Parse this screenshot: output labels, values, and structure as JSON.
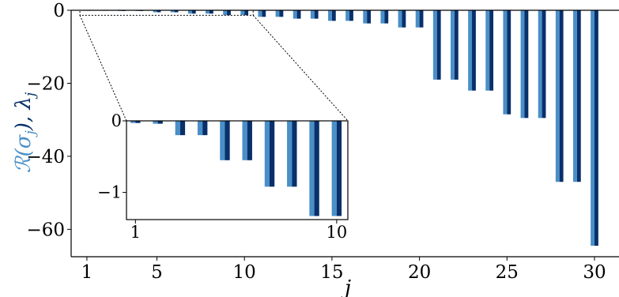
{
  "chart_data": {
    "type": "bar",
    "title": "",
    "xlabel": "j",
    "ylabel_parts": [
      "ℛ(σ",
      "j",
      "), λ",
      "j"
    ],
    "colors": {
      "real_sigma": "#4a8fc7",
      "lambda": "#08306b"
    },
    "x": [
      1,
      2,
      3,
      4,
      5,
      6,
      7,
      8,
      9,
      10,
      11,
      12,
      13,
      14,
      15,
      16,
      17,
      18,
      19,
      20,
      21,
      22,
      23,
      24,
      25,
      26,
      27,
      28,
      29,
      30
    ],
    "series": [
      {
        "values": [
          -0.03,
          -0.04,
          -0.2,
          -0.2,
          -0.55,
          -0.55,
          -0.92,
          -0.92,
          -1.33,
          -1.33,
          -1.8,
          -1.8,
          -2.3,
          -2.3,
          -2.9,
          -2.9,
          -3.6,
          -3.6,
          -4.7,
          -4.7,
          -19.0,
          -19.0,
          -22.0,
          -22.0,
          -28.5,
          -29.5,
          -29.5,
          -47.0,
          -47.0,
          -64.5
        ]
      },
      {
        "values": [
          -0.03,
          -0.04,
          -0.2,
          -0.2,
          -0.55,
          -0.55,
          -0.92,
          -0.92,
          -1.33,
          -1.33,
          -1.8,
          -1.8,
          -2.3,
          -2.3,
          -2.9,
          -2.9,
          -3.6,
          -3.6,
          -4.7,
          -4.7,
          -19.0,
          -19.0,
          -22.0,
          -22.0,
          -28.5,
          -29.5,
          -29.5,
          -47.0,
          -47.0,
          -64.5
        ]
      }
    ],
    "xlim": [
      0.1,
      31.4
    ],
    "ylim": [
      -67.5,
      0
    ],
    "xticks": [
      1,
      5,
      10,
      15,
      20,
      25,
      30
    ],
    "yticks": [
      0,
      -20,
      -40,
      -60
    ],
    "xtick_labels": [
      "1",
      "5",
      "10",
      "15",
      "20",
      "25",
      "30"
    ],
    "ytick_labels": [
      "0",
      "−20",
      "−40",
      "−60"
    ],
    "inset": {
      "x": [
        1,
        2,
        3,
        4,
        5,
        6,
        7,
        8,
        9,
        10
      ],
      "xlim": [
        0.6,
        10.5
      ],
      "ylim": [
        -1.38,
        0
      ],
      "xticks": [
        1,
        10
      ],
      "yticks": [
        0,
        -1
      ],
      "xtick_labels": [
        "1",
        "10"
      ],
      "ytick_labels": [
        "0",
        "−1"
      ]
    }
  }
}
